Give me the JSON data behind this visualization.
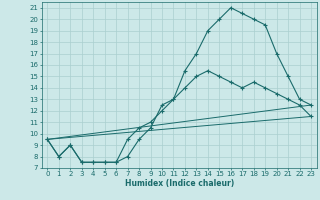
{
  "xlabel": "Humidex (Indice chaleur)",
  "xlim": [
    -0.5,
    23.5
  ],
  "ylim": [
    7,
    21.5
  ],
  "yticks": [
    7,
    8,
    9,
    10,
    11,
    12,
    13,
    14,
    15,
    16,
    17,
    18,
    19,
    20,
    21
  ],
  "xticks": [
    0,
    1,
    2,
    3,
    4,
    5,
    6,
    7,
    8,
    9,
    10,
    11,
    12,
    13,
    14,
    15,
    16,
    17,
    18,
    19,
    20,
    21,
    22,
    23
  ],
  "bg_color": "#cce8e8",
  "line_color": "#1a6b6b",
  "grid_color": "#aacfcf",
  "line1_x": [
    0,
    1,
    2,
    3,
    4,
    5,
    6,
    7,
    8,
    9,
    10,
    11,
    12,
    13,
    14,
    15,
    16,
    17,
    18,
    19,
    20,
    21,
    22,
    23
  ],
  "line1_y": [
    9.5,
    8.0,
    9.0,
    7.5,
    7.5,
    7.5,
    7.5,
    8.0,
    9.5,
    10.5,
    12.5,
    13.0,
    15.5,
    17.0,
    19.0,
    20.0,
    21.0,
    20.5,
    20.0,
    19.5,
    17.0,
    15.0,
    13.0,
    12.5
  ],
  "line2_x": [
    0,
    1,
    2,
    3,
    4,
    5,
    6,
    7,
    8,
    9,
    10,
    11,
    12,
    13,
    14,
    15,
    16,
    17,
    18,
    19,
    20,
    21,
    22,
    23
  ],
  "line2_y": [
    9.5,
    8.0,
    9.0,
    7.5,
    7.5,
    7.5,
    7.5,
    9.5,
    10.5,
    11.0,
    12.0,
    13.0,
    14.0,
    15.0,
    15.5,
    15.0,
    14.5,
    14.0,
    14.5,
    14.0,
    13.5,
    13.0,
    12.5,
    11.5
  ],
  "line3_x": [
    0,
    23
  ],
  "line3_y": [
    9.5,
    11.5
  ],
  "line4_x": [
    0,
    23
  ],
  "line4_y": [
    9.5,
    12.5
  ]
}
